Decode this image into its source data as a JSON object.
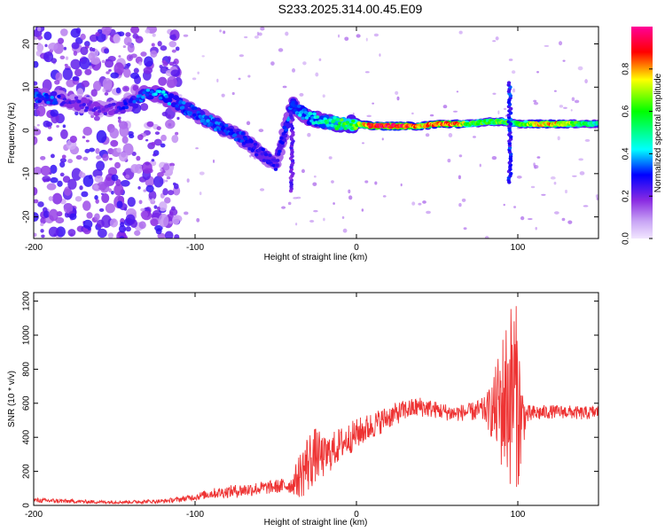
{
  "title": "S233.2025.314.00.45.E09",
  "chart_data": [
    {
      "type": "heatmap",
      "name": "spectrogram",
      "xlabel": "Height of straight line (km)",
      "ylabel": "Frequency (Hz)",
      "xlim": [
        -200,
        150
      ],
      "ylim": [
        -25,
        24
      ],
      "xticks": [
        -200,
        -100,
        0,
        100
      ],
      "xtick_labels": [
        "-200",
        "-100",
        "0",
        "100"
      ],
      "yticks": [
        -20,
        -10,
        0,
        10,
        20
      ],
      "ytick_labels": [
        "-20",
        "-10",
        "0",
        "10",
        "20"
      ],
      "grid": false,
      "colorbar": {
        "label": "Normalized spectral amplitude",
        "range": [
          0,
          1
        ],
        "ticks": [
          0.0,
          0.2,
          0.4,
          0.6,
          0.8
        ],
        "tick_labels": [
          "0.0",
          "0.2",
          "0.4",
          "0.6",
          "0.8"
        ],
        "colors": [
          "#f2e6ff",
          "#8a2be2",
          "#0000ff",
          "#00ffff",
          "#00ff00",
          "#ffff00",
          "#ff0000",
          "#ff00aa"
        ]
      },
      "ridge": {
        "description": "dominant frequency vs height",
        "x": [
          -200,
          -190,
          -180,
          -170,
          -160,
          -150,
          -140,
          -130,
          -120,
          -110,
          -100,
          -90,
          -80,
          -70,
          -60,
          -50,
          -40,
          -30,
          -20,
          -10,
          0,
          10,
          20,
          30,
          40,
          50,
          60,
          70,
          80,
          90,
          100,
          110,
          120,
          130,
          140,
          150
        ],
        "y": [
          8,
          7.5,
          7,
          6,
          5,
          5,
          6,
          9,
          8,
          6,
          4,
          2,
          0,
          -2,
          -5,
          -8,
          6,
          3,
          2,
          1.5,
          1.5,
          1,
          1,
          1,
          1,
          1.5,
          1.5,
          1.5,
          2,
          2,
          1.5,
          1.5,
          1.5,
          1.5,
          1.5,
          1.5
        ],
        "amplitude": [
          0.3,
          0.35,
          0.2,
          0.2,
          0.2,
          0.2,
          0.3,
          0.35,
          0.4,
          0.35,
          0.3,
          0.35,
          0.3,
          0.3,
          0.25,
          0.25,
          0.35,
          0.4,
          0.45,
          0.55,
          0.6,
          0.85,
          0.9,
          0.85,
          0.7,
          0.8,
          0.8,
          0.6,
          0.55,
          0.6,
          0.5,
          0.7,
          0.75,
          0.7,
          0.5,
          0.45
        ]
      },
      "spikes": [
        {
          "x": 95,
          "y_from": -12,
          "y_to": 11,
          "amplitude": 0.3
        },
        {
          "x": -40,
          "y_from": -14,
          "y_to": 4,
          "amplitude": 0.2
        }
      ],
      "noise_region": {
        "x_from": -200,
        "x_to": -110,
        "amplitude": 0.2
      }
    },
    {
      "type": "line",
      "name": "snr",
      "xlabel": "Height of straight line (km)",
      "ylabel": "SNR (10 * v/v)",
      "xlim": [
        -200,
        150
      ],
      "ylim": [
        0,
        1250
      ],
      "xticks": [
        -200,
        -100,
        0,
        100
      ],
      "xtick_labels": [
        "-200",
        "-100",
        "0",
        "100"
      ],
      "yticks": [
        0,
        200,
        400,
        600,
        800,
        1000,
        1200
      ],
      "ytick_labels": [
        "0",
        "200",
        "400",
        "600",
        "800",
        "1000",
        "1200"
      ],
      "grid": false,
      "color": "#ee3333",
      "envelope": {
        "x": [
          -200,
          -180,
          -160,
          -140,
          -120,
          -110,
          -100,
          -90,
          -80,
          -70,
          -60,
          -50,
          -40,
          -35,
          -30,
          -25,
          -20,
          -10,
          0,
          10,
          20,
          30,
          40,
          50,
          60,
          70,
          80,
          85,
          90,
          95,
          98,
          100,
          102,
          105,
          110,
          120,
          130,
          140,
          150
        ],
        "mean": [
          30,
          25,
          20,
          20,
          25,
          35,
          50,
          70,
          80,
          90,
          100,
          110,
          120,
          180,
          250,
          300,
          280,
          360,
          420,
          470,
          520,
          560,
          580,
          560,
          540,
          550,
          560,
          560,
          600,
          650,
          700,
          600,
          500,
          530,
          540,
          550,
          550,
          540,
          550
        ],
        "spread": [
          15,
          12,
          10,
          10,
          12,
          15,
          20,
          30,
          35,
          40,
          40,
          40,
          50,
          140,
          190,
          160,
          120,
          100,
          90,
          80,
          70,
          60,
          60,
          50,
          50,
          50,
          80,
          200,
          400,
          550,
          550,
          520,
          300,
          60,
          50,
          40,
          40,
          40,
          40
        ]
      }
    }
  ]
}
